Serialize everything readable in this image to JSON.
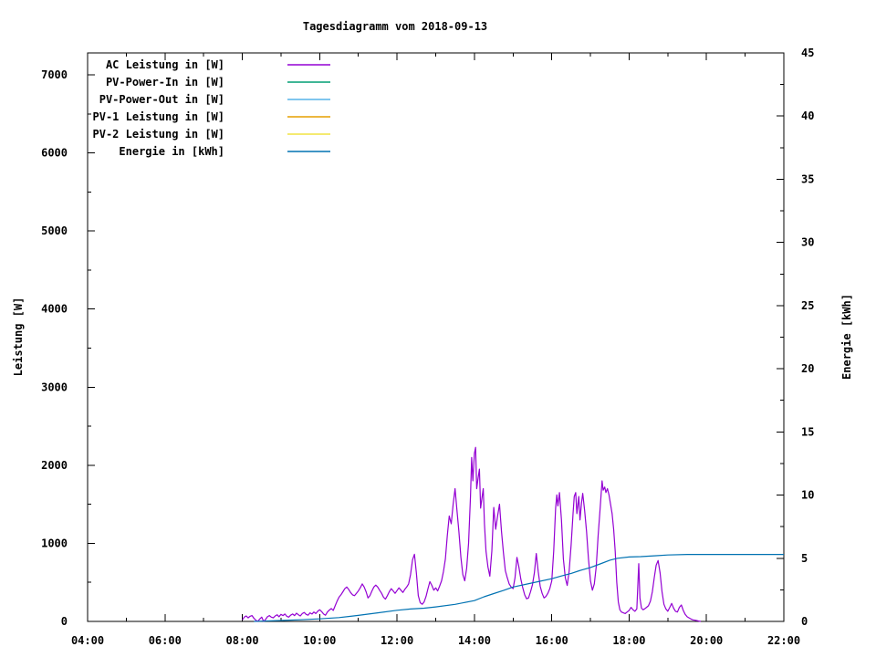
{
  "window": {
    "title": "Tagesdiagramm vom 2018-09-13"
  },
  "colors": {
    "background": "#ffffff",
    "foreground": "#000000"
  },
  "chart_data": {
    "type": "line",
    "title": "Tagesdiagramm vom 2018-09-13",
    "xlabel": "",
    "ylabel_left": "Leistung [W]",
    "ylabel_right": "Energie [kWh]",
    "grid": false,
    "legend_position": "top-left-inside",
    "x_axis": {
      "start_hour": 4,
      "end_hour": 22,
      "major_tick_hours": 2,
      "minor_tick_hours": 1,
      "tick_labels": [
        "04:00",
        "06:00",
        "08:00",
        "10:00",
        "12:00",
        "14:00",
        "16:00",
        "18:00",
        "20:00",
        "22:00"
      ]
    },
    "y_axis_left": {
      "label": "Leistung [W]",
      "min": 0,
      "max_tick": 7000,
      "major_step": 1000,
      "minor_step": 500,
      "tick_labels": [
        "0",
        "1000",
        "2000",
        "3000",
        "4000",
        "5000",
        "6000",
        "7000"
      ]
    },
    "y_axis_right": {
      "label": "Energie [kWh]",
      "min": 0,
      "max": 45,
      "major_step": 5,
      "minor_step": 2.5,
      "tick_labels": [
        "0",
        "5",
        "10",
        "15",
        "20",
        "25",
        "30",
        "35",
        "40",
        "45"
      ]
    },
    "legend": [
      {
        "label": "AC Leistung in [W]",
        "color": "#9400d3"
      },
      {
        "label": "PV-Power-In in [W]",
        "color": "#009e73"
      },
      {
        "label": "PV-Power-Out in [W]",
        "color": "#56b4e9"
      },
      {
        "label": "PV-1 Leistung in [W]",
        "color": "#e69f00"
      },
      {
        "label": "PV-2 Leistung in [W]",
        "color": "#f0e442"
      },
      {
        "label": "Energie in [kWh]",
        "color": "#0072b2"
      }
    ],
    "series": [
      {
        "key": "ac-leistung",
        "name": "AC Leistung in [W]",
        "color": "#9400d3",
        "axis": "left",
        "points": [
          [
            8.0,
            20
          ],
          [
            8.05,
            55
          ],
          [
            8.1,
            70
          ],
          [
            8.15,
            45
          ],
          [
            8.2,
            65
          ],
          [
            8.25,
            75
          ],
          [
            8.3,
            40
          ],
          [
            8.35,
            15
          ],
          [
            8.4,
            0
          ],
          [
            8.45,
            30
          ],
          [
            8.5,
            55
          ],
          [
            8.55,
            0
          ],
          [
            8.6,
            25
          ],
          [
            8.65,
            60
          ],
          [
            8.7,
            75
          ],
          [
            8.75,
            55
          ],
          [
            8.8,
            45
          ],
          [
            8.85,
            70
          ],
          [
            8.9,
            85
          ],
          [
            8.95,
            60
          ],
          [
            9.0,
            90
          ],
          [
            9.05,
            75
          ],
          [
            9.1,
            95
          ],
          [
            9.15,
            65
          ],
          [
            9.2,
            55
          ],
          [
            9.25,
            80
          ],
          [
            9.3,
            95
          ],
          [
            9.35,
            75
          ],
          [
            9.4,
            105
          ],
          [
            9.45,
            85
          ],
          [
            9.5,
            70
          ],
          [
            9.55,
            100
          ],
          [
            9.6,
            115
          ],
          [
            9.65,
            90
          ],
          [
            9.7,
            80
          ],
          [
            9.75,
            110
          ],
          [
            9.8,
            95
          ],
          [
            9.85,
            120
          ],
          [
            9.9,
            100
          ],
          [
            9.95,
            130
          ],
          [
            10.0,
            150
          ],
          [
            10.05,
            125
          ],
          [
            10.1,
            95
          ],
          [
            10.15,
            80
          ],
          [
            10.2,
            120
          ],
          [
            10.25,
            145
          ],
          [
            10.3,
            165
          ],
          [
            10.35,
            140
          ],
          [
            10.4,
            200
          ],
          [
            10.45,
            260
          ],
          [
            10.5,
            310
          ],
          [
            10.55,
            340
          ],
          [
            10.6,
            380
          ],
          [
            10.65,
            420
          ],
          [
            10.7,
            440
          ],
          [
            10.75,
            410
          ],
          [
            10.8,
            370
          ],
          [
            10.85,
            340
          ],
          [
            10.9,
            330
          ],
          [
            10.95,
            360
          ],
          [
            11.0,
            390
          ],
          [
            11.05,
            430
          ],
          [
            11.1,
            480
          ],
          [
            11.15,
            440
          ],
          [
            11.2,
            380
          ],
          [
            11.25,
            300
          ],
          [
            11.3,
            330
          ],
          [
            11.35,
            390
          ],
          [
            11.4,
            440
          ],
          [
            11.45,
            465
          ],
          [
            11.5,
            440
          ],
          [
            11.55,
            400
          ],
          [
            11.6,
            360
          ],
          [
            11.65,
            310
          ],
          [
            11.7,
            285
          ],
          [
            11.75,
            330
          ],
          [
            11.8,
            380
          ],
          [
            11.85,
            420
          ],
          [
            11.9,
            390
          ],
          [
            11.95,
            360
          ],
          [
            12.0,
            395
          ],
          [
            12.05,
            430
          ],
          [
            12.1,
            400
          ],
          [
            12.15,
            370
          ],
          [
            12.2,
            410
          ],
          [
            12.25,
            440
          ],
          [
            12.3,
            480
          ],
          [
            12.35,
            600
          ],
          [
            12.4,
            790
          ],
          [
            12.45,
            860
          ],
          [
            12.5,
            620
          ],
          [
            12.55,
            330
          ],
          [
            12.6,
            240
          ],
          [
            12.65,
            220
          ],
          [
            12.7,
            250
          ],
          [
            12.75,
            320
          ],
          [
            12.8,
            420
          ],
          [
            12.85,
            510
          ],
          [
            12.9,
            460
          ],
          [
            12.95,
            400
          ],
          [
            13.0,
            430
          ],
          [
            13.05,
            390
          ],
          [
            13.1,
            450
          ],
          [
            13.15,
            520
          ],
          [
            13.2,
            640
          ],
          [
            13.25,
            800
          ],
          [
            13.3,
            1100
          ],
          [
            13.35,
            1350
          ],
          [
            13.4,
            1250
          ],
          [
            13.45,
            1500
          ],
          [
            13.5,
            1700
          ],
          [
            13.55,
            1420
          ],
          [
            13.6,
            1150
          ],
          [
            13.65,
            820
          ],
          [
            13.7,
            600
          ],
          [
            13.75,
            520
          ],
          [
            13.8,
            680
          ],
          [
            13.85,
            1000
          ],
          [
            13.9,
            1600
          ],
          [
            13.93,
            2100
          ],
          [
            13.96,
            1800
          ],
          [
            14.0,
            2150
          ],
          [
            14.03,
            2230
          ],
          [
            14.06,
            1700
          ],
          [
            14.1,
            1850
          ],
          [
            14.13,
            1950
          ],
          [
            14.16,
            1450
          ],
          [
            14.2,
            1600
          ],
          [
            14.23,
            1700
          ],
          [
            14.26,
            1250
          ],
          [
            14.3,
            900
          ],
          [
            14.35,
            700
          ],
          [
            14.4,
            580
          ],
          [
            14.45,
            900
          ],
          [
            14.5,
            1460
          ],
          [
            14.55,
            1180
          ],
          [
            14.6,
            1350
          ],
          [
            14.65,
            1500
          ],
          [
            14.7,
            1150
          ],
          [
            14.75,
            880
          ],
          [
            14.8,
            650
          ],
          [
            14.85,
            560
          ],
          [
            14.9,
            480
          ],
          [
            14.95,
            440
          ],
          [
            15.0,
            420
          ],
          [
            15.05,
            560
          ],
          [
            15.1,
            820
          ],
          [
            15.15,
            700
          ],
          [
            15.2,
            540
          ],
          [
            15.25,
            430
          ],
          [
            15.3,
            340
          ],
          [
            15.35,
            290
          ],
          [
            15.4,
            300
          ],
          [
            15.45,
            380
          ],
          [
            15.5,
            470
          ],
          [
            15.55,
            620
          ],
          [
            15.6,
            870
          ],
          [
            15.65,
            640
          ],
          [
            15.7,
            450
          ],
          [
            15.75,
            360
          ],
          [
            15.8,
            300
          ],
          [
            15.85,
            320
          ],
          [
            15.9,
            360
          ],
          [
            15.95,
            420
          ],
          [
            16.0,
            520
          ],
          [
            16.05,
            900
          ],
          [
            16.1,
            1450
          ],
          [
            16.13,
            1620
          ],
          [
            16.16,
            1480
          ],
          [
            16.2,
            1650
          ],
          [
            16.25,
            1300
          ],
          [
            16.3,
            800
          ],
          [
            16.35,
            560
          ],
          [
            16.4,
            460
          ],
          [
            16.45,
            640
          ],
          [
            16.5,
            980
          ],
          [
            16.55,
            1380
          ],
          [
            16.58,
            1600
          ],
          [
            16.62,
            1650
          ],
          [
            16.65,
            1380
          ],
          [
            16.7,
            1600
          ],
          [
            16.73,
            1300
          ],
          [
            16.77,
            1520
          ],
          [
            16.8,
            1640
          ],
          [
            16.85,
            1420
          ],
          [
            16.9,
            1150
          ],
          [
            16.95,
            800
          ],
          [
            17.0,
            520
          ],
          [
            17.05,
            400
          ],
          [
            17.1,
            480
          ],
          [
            17.15,
            700
          ],
          [
            17.2,
            1100
          ],
          [
            17.25,
            1450
          ],
          [
            17.3,
            1800
          ],
          [
            17.33,
            1680
          ],
          [
            17.37,
            1720
          ],
          [
            17.4,
            1650
          ],
          [
            17.44,
            1700
          ],
          [
            17.48,
            1620
          ],
          [
            17.52,
            1500
          ],
          [
            17.56,
            1380
          ],
          [
            17.6,
            1180
          ],
          [
            17.64,
            900
          ],
          [
            17.68,
            500
          ],
          [
            17.72,
            250
          ],
          [
            17.76,
            150
          ],
          [
            17.8,
            120
          ],
          [
            17.85,
            110
          ],
          [
            17.9,
            100
          ],
          [
            17.95,
            120
          ],
          [
            18.0,
            140
          ],
          [
            18.05,
            180
          ],
          [
            18.1,
            150
          ],
          [
            18.15,
            130
          ],
          [
            18.2,
            160
          ],
          [
            18.25,
            740
          ],
          [
            18.28,
            300
          ],
          [
            18.32,
            170
          ],
          [
            18.36,
            150
          ],
          [
            18.4,
            160
          ],
          [
            18.45,
            180
          ],
          [
            18.5,
            200
          ],
          [
            18.55,
            260
          ],
          [
            18.6,
            380
          ],
          [
            18.65,
            560
          ],
          [
            18.7,
            720
          ],
          [
            18.75,
            780
          ],
          [
            18.8,
            620
          ],
          [
            18.85,
            380
          ],
          [
            18.9,
            220
          ],
          [
            18.95,
            160
          ],
          [
            19.0,
            130
          ],
          [
            19.05,
            180
          ],
          [
            19.1,
            230
          ],
          [
            19.15,
            170
          ],
          [
            19.2,
            130
          ],
          [
            19.25,
            120
          ],
          [
            19.3,
            180
          ],
          [
            19.35,
            210
          ],
          [
            19.4,
            140
          ],
          [
            19.45,
            90
          ],
          [
            19.5,
            60
          ],
          [
            19.55,
            45
          ],
          [
            19.6,
            30
          ],
          [
            19.65,
            20
          ],
          [
            19.7,
            15
          ],
          [
            19.75,
            10
          ],
          [
            19.8,
            5
          ],
          [
            19.85,
            0
          ]
        ]
      },
      {
        "key": "pv-power-in",
        "name": "PV-Power-In in [W]",
        "color": "#009e73",
        "axis": "left",
        "points": []
      },
      {
        "key": "pv-power-out",
        "name": "PV-Power-Out in [W]",
        "color": "#56b4e9",
        "axis": "left",
        "points": []
      },
      {
        "key": "pv-1-leistung",
        "name": "PV-1 Leistung in [W]",
        "color": "#e69f00",
        "axis": "left",
        "points": []
      },
      {
        "key": "pv-2-leistung",
        "name": "PV-2 Leistung in [W]",
        "color": "#f0e442",
        "axis": "left",
        "points": []
      },
      {
        "key": "energie",
        "name": "Energie in [kWh]",
        "color": "#0072b2",
        "axis": "right",
        "points": [
          [
            8.3,
            0
          ],
          [
            8.5,
            0.02
          ],
          [
            9.0,
            0.07
          ],
          [
            9.5,
            0.13
          ],
          [
            10.0,
            0.2
          ],
          [
            10.5,
            0.3
          ],
          [
            11.0,
            0.48
          ],
          [
            11.5,
            0.68
          ],
          [
            12.0,
            0.88
          ],
          [
            12.35,
            0.98
          ],
          [
            12.7,
            1.05
          ],
          [
            13.0,
            1.15
          ],
          [
            13.5,
            1.35
          ],
          [
            14.0,
            1.65
          ],
          [
            14.25,
            1.95
          ],
          [
            14.5,
            2.2
          ],
          [
            14.75,
            2.45
          ],
          [
            15.0,
            2.72
          ],
          [
            15.42,
            3.0
          ],
          [
            16.0,
            3.38
          ],
          [
            16.25,
            3.6
          ],
          [
            16.5,
            3.8
          ],
          [
            16.75,
            4.05
          ],
          [
            17.0,
            4.27
          ],
          [
            17.25,
            4.55
          ],
          [
            17.5,
            4.85
          ],
          [
            17.7,
            5.0
          ],
          [
            18.0,
            5.1
          ],
          [
            18.3,
            5.13
          ],
          [
            18.7,
            5.2
          ],
          [
            19.0,
            5.26
          ],
          [
            19.5,
            5.3
          ],
          [
            20.0,
            5.3
          ],
          [
            21.0,
            5.3
          ],
          [
            22.0,
            5.3
          ]
        ]
      }
    ]
  }
}
